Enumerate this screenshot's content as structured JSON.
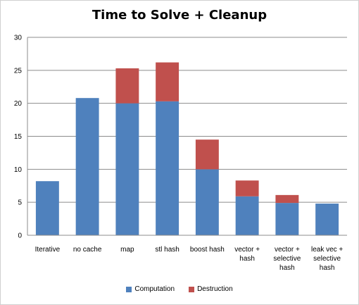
{
  "chart_data": {
    "type": "bar",
    "stacked": true,
    "title": "Time to Solve + Cleanup",
    "xlabel": "",
    "ylabel": "",
    "ylim": [
      0,
      30
    ],
    "yticks": [
      0,
      5,
      10,
      15,
      20,
      25,
      30
    ],
    "grid": true,
    "legend_position": "bottom",
    "categories": [
      [
        "Iterative"
      ],
      [
        "no cache"
      ],
      [
        "map"
      ],
      [
        "stl hash"
      ],
      [
        "boost hash"
      ],
      [
        "vector +",
        "hash"
      ],
      [
        "vector +",
        "selective",
        "hash"
      ],
      [
        "leak vec +",
        "selective",
        "hash"
      ]
    ],
    "series": [
      {
        "name": "Computation",
        "color": "#4f81bd",
        "values": [
          8.2,
          20.8,
          20.0,
          20.3,
          10.0,
          5.9,
          4.9,
          4.8
        ]
      },
      {
        "name": "Destruction",
        "color": "#c0504d",
        "values": [
          0,
          0,
          5.3,
          5.9,
          4.5,
          2.4,
          1.2,
          0
        ]
      }
    ]
  }
}
